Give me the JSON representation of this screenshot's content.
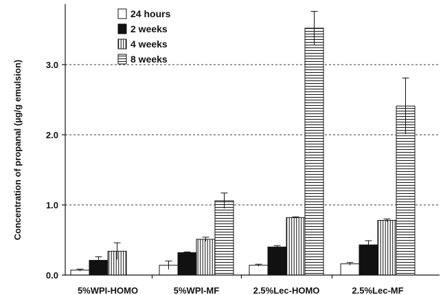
{
  "chart_data": {
    "type": "bar",
    "title": "",
    "xlabel": "",
    "ylabel": "Concentration of propanal (µg/g emulsion)",
    "ylim": [
      0,
      3.7
    ],
    "yticks": [
      "0.0",
      "1.0",
      "2.0",
      "3.0"
    ],
    "ytick_values": [
      0,
      1,
      2,
      3
    ],
    "grid": "dashed horizontal at 1.0, 2.0, 3.0",
    "legend_position": "top-left",
    "categories": [
      "5%WPI-HOMO",
      "5%WPI-MF",
      "2.5%Lec-HOMO",
      "2.5%Lec-MF"
    ],
    "series": [
      {
        "name": "24 hours",
        "fill": "white",
        "values": [
          0.07,
          0.14,
          0.14,
          0.16
        ],
        "errors": [
          0.015,
          0.06,
          0.015,
          0.02
        ]
      },
      {
        "name": "2 weeks",
        "fill": "black",
        "values": [
          0.21,
          0.32,
          0.4,
          0.43
        ],
        "errors": [
          0.05,
          0.01,
          0.02,
          0.06
        ]
      },
      {
        "name": "4 weeks",
        "fill": "vertical-lines",
        "values": [
          0.34,
          0.51,
          0.82,
          0.78
        ],
        "errors": [
          0.12,
          0.03,
          0.01,
          0.02
        ]
      },
      {
        "name": "8 weeks",
        "fill": "horizontal-lines",
        "values": [
          null,
          1.06,
          3.52,
          2.41
        ],
        "errors": [
          null,
          0.11,
          0.24,
          0.4
        ]
      }
    ]
  }
}
